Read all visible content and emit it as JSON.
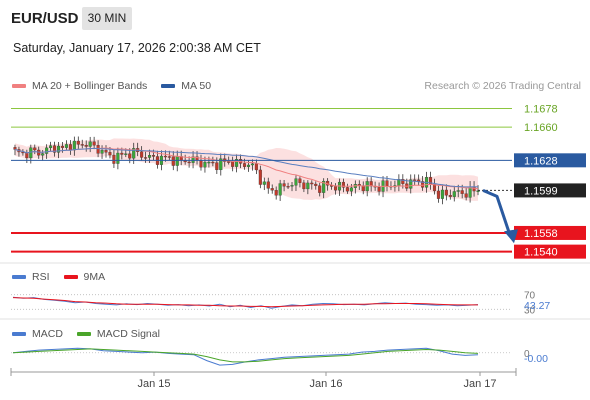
{
  "header": {
    "symbol": "EUR/USD",
    "timeframe": "30 MIN",
    "datetime": "Saturday, January 17, 2026 2:00:38 AM CET"
  },
  "main_legend": [
    {
      "label": "MA 20 + Bollinger Bands",
      "color": "#f08080"
    },
    {
      "label": "MA 50",
      "color": "#2a5aa0"
    }
  ],
  "credit": "Research © 2026 Trading Central",
  "chart_data": [
    {
      "type": "candlestick",
      "price_range": [
        1.153,
        1.169
      ],
      "x_ticks": [
        "Jan 15",
        "Jan 16",
        "Jan 17"
      ],
      "last_price": {
        "label": "1.1599",
        "value": 1.1599
      },
      "levels": [
        {
          "label": "1.1678",
          "value": 1.1678,
          "kind": "resistance",
          "color": "#8cc63f"
        },
        {
          "label": "1.1660",
          "value": 1.166,
          "kind": "resistance",
          "color": "#8cc63f"
        },
        {
          "label": "1.1628",
          "value": 1.1628,
          "kind": "pivot",
          "color": "#2a5aa0"
        },
        {
          "label": "1.1558",
          "value": 1.1558,
          "kind": "support",
          "color": "#e8141e"
        },
        {
          "label": "1.1540",
          "value": 1.154,
          "kind": "support",
          "color": "#e8141e"
        }
      ],
      "close_path": [
        1.1636,
        1.1634,
        1.1637,
        1.1635,
        1.1638,
        1.1641,
        1.1639,
        1.1644,
        1.1642,
        1.1645,
        1.164,
        1.1637,
        1.163,
        1.1632,
        1.1634,
        1.1636,
        1.1633,
        1.163,
        1.1629,
        1.1631,
        1.1628,
        1.1627,
        1.1629,
        1.1626,
        1.1625,
        1.1624,
        1.1626,
        1.1627,
        1.1624,
        1.1625,
        1.1621,
        1.1606,
        1.1598,
        1.16,
        1.1604,
        1.1607,
        1.1605,
        1.1604,
        1.1602,
        1.1604,
        1.1603,
        1.1602,
        1.1601,
        1.1603,
        1.1604,
        1.1602,
        1.1603,
        1.1604,
        1.1606,
        1.1605,
        1.1608,
        1.1607,
        1.1606,
        1.1594,
        1.1595,
        1.1597,
        1.1596,
        1.1598,
        1.1599
      ],
      "projection": [
        1.1599,
        1.155
      ]
    },
    {
      "type": "line",
      "title": "RSI",
      "legend": [
        {
          "label": "RSI",
          "color": "#4a7bd0"
        },
        {
          "label": "9MA",
          "color": "#e8141e"
        }
      ],
      "levels": [
        {
          "label": "70",
          "value": 70
        },
        {
          "label": "30",
          "value": 30
        }
      ],
      "value_label": "43.27",
      "ylim": [
        20,
        80
      ],
      "series": [
        {
          "name": "RSI",
          "values": [
            63,
            60,
            62,
            57,
            55,
            52,
            48,
            50,
            46,
            44,
            42,
            45,
            43,
            46,
            44,
            41,
            43,
            40,
            42,
            39,
            44,
            37,
            41,
            35,
            40,
            33,
            38,
            42,
            40,
            44,
            46,
            45,
            43,
            44,
            42,
            45,
            48,
            46,
            47,
            44,
            43,
            41,
            42,
            40,
            41,
            43
          ]
        },
        {
          "name": "9MA",
          "values": [
            62,
            61,
            60,
            58,
            56,
            54,
            51,
            50,
            48,
            47,
            45,
            44,
            44,
            44,
            44,
            43,
            42,
            42,
            41,
            41,
            40,
            39,
            39,
            38,
            38,
            37,
            38,
            39,
            40,
            41,
            42,
            43,
            44,
            44,
            44,
            45,
            45,
            46,
            46,
            46,
            45,
            44,
            43,
            42,
            42,
            42
          ]
        }
      ]
    },
    {
      "type": "line",
      "title": "MACD",
      "legend": [
        {
          "label": "MACD",
          "color": "#4a7bd0"
        },
        {
          "label": "MACD Signal",
          "color": "#4aa52a"
        }
      ],
      "levels": [
        {
          "label": "0",
          "value": 0
        }
      ],
      "value_label": "-0.00",
      "ylim": [
        -0.0025,
        0.0015
      ],
      "series": [
        {
          "name": "MACD",
          "values": [
            0.0,
            0.0002,
            0.0004,
            0.0005,
            0.0006,
            0.0007,
            0.0006,
            0.0003,
            0.0002,
            0.0001,
            0.0,
            0.0001,
            -0.0001,
            -0.0002,
            -0.0003,
            -0.0012,
            -0.0019,
            -0.0018,
            -0.0014,
            -0.0011,
            -0.0009,
            -0.0007,
            -0.0006,
            -0.0005,
            -0.0004,
            -0.0003,
            -0.0002,
            0.0001,
            0.0002,
            0.0004,
            0.0005,
            0.0006,
            0.0007,
            0.0003,
            -0.0002,
            -0.0004,
            -0.0003
          ]
        },
        {
          "name": "MACD Signal",
          "values": [
            0.0,
            0.0001,
            0.0002,
            0.0003,
            0.0004,
            0.0005,
            0.0006,
            0.0005,
            0.0004,
            0.0003,
            0.0002,
            0.0001,
            0.0,
            -0.0001,
            -0.0002,
            -0.0006,
            -0.0011,
            -0.0014,
            -0.0014,
            -0.0013,
            -0.0011,
            -0.0009,
            -0.0008,
            -0.0007,
            -0.0006,
            -0.0005,
            -0.0004,
            -0.0002,
            0.0,
            0.0002,
            0.0003,
            0.0004,
            0.0005,
            0.0004,
            0.0002,
            0.0,
            -0.0001
          ]
        }
      ]
    }
  ]
}
